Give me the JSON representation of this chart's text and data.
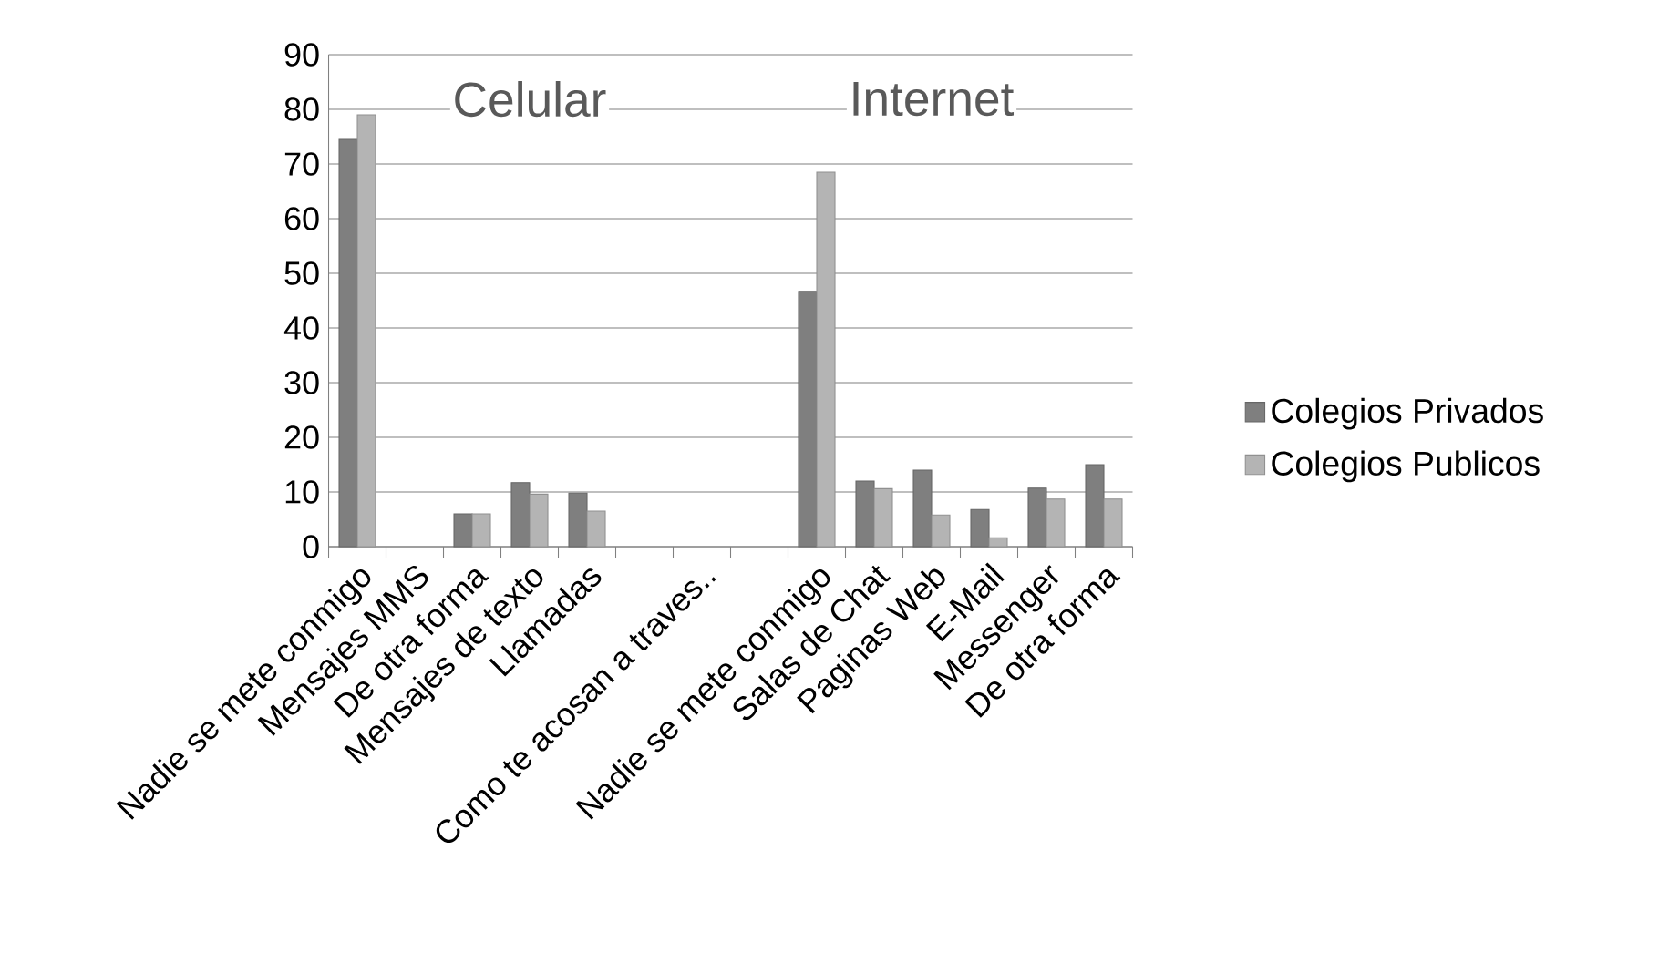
{
  "chart_data": {
    "type": "bar",
    "categories": [
      "Nadie se mete conmigo",
      "Mensajes MMS",
      "De otra forma",
      "Mensajes de texto",
      "Llamadas",
      null,
      "Como te acosan a traves..",
      null,
      "Nadie se mete conmigo",
      "Salas de Chat",
      "Paginas Web",
      "E-Mail",
      "Messenger",
      "De otra forma"
    ],
    "series": [
      {
        "name": "Colegios Privados",
        "color": "#7f7f7f",
        "values": [
          74.5,
          null,
          6,
          11.7,
          9.8,
          null,
          null,
          null,
          46.7,
          12,
          14,
          6.8,
          10.7,
          15
        ]
      },
      {
        "name": "Colegios Publicos",
        "color": "#b4b4b4",
        "values": [
          79,
          null,
          6,
          9.6,
          6.5,
          null,
          null,
          null,
          68.5,
          10.6,
          5.8,
          1.6,
          8.7,
          8.7
        ]
      }
    ],
    "annotations": [
      "Celular",
      "Internet"
    ],
    "ylim": [
      0,
      90
    ],
    "yticks": [
      0,
      10,
      20,
      30,
      40,
      50,
      60,
      70,
      80,
      90
    ],
    "grid": "y",
    "legend": "right"
  }
}
